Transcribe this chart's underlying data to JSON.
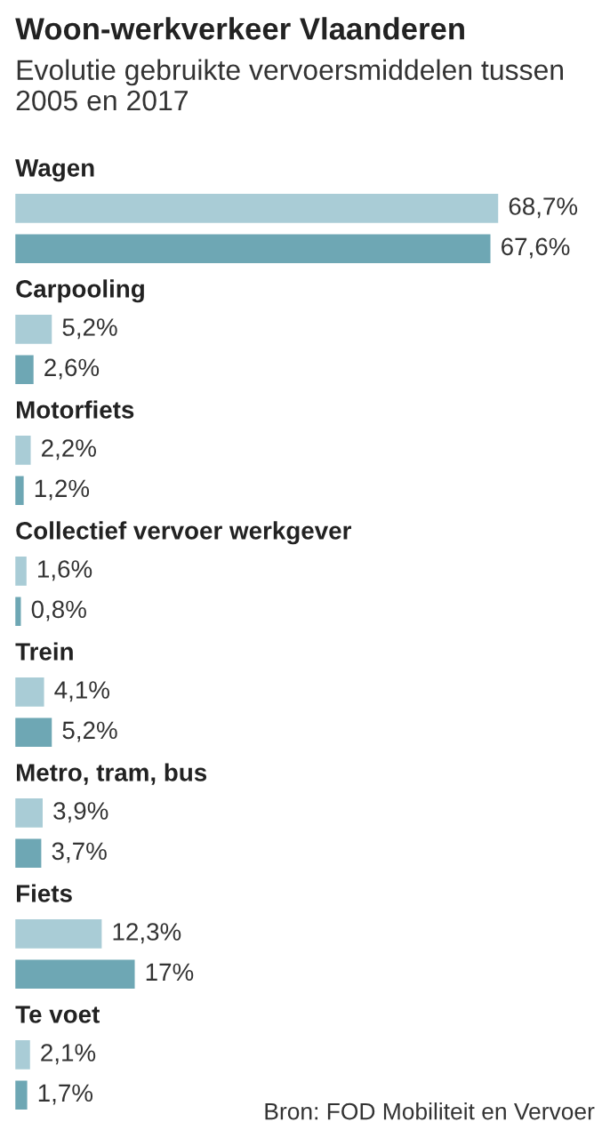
{
  "chart_data": {
    "type": "bar",
    "orientation": "horizontal",
    "title": "Woon-werkverkeer Vlaanderen",
    "subtitle": "Evolutie gebruikte vervoersmiddelen tussen 2005 en 2017",
    "categories": [
      "Wagen",
      "Carpooling",
      "Motorfiets",
      "Collectief vervoer werkgever",
      "Trein",
      "Metro, tram, bus",
      "Fiets",
      "Te voet"
    ],
    "series": [
      {
        "color": "#a9ccd6",
        "values": [
          68.7,
          5.2,
          2.2,
          1.6,
          4.1,
          3.9,
          12.3,
          2.1
        ],
        "value_labels": [
          "68,7%",
          "5,2%",
          "2,2%",
          "1,6%",
          "4,1%",
          "3,9%",
          "12,3%",
          "2,1%"
        ]
      },
      {
        "color": "#6ea7b4",
        "values": [
          67.6,
          2.6,
          1.2,
          0.8,
          5.2,
          3.7,
          17,
          1.7
        ],
        "value_labels": [
          "67,6%",
          "2,6%",
          "1,2%",
          "0,8%",
          "5,2%",
          "3,7%",
          "17%",
          "1,7%"
        ]
      }
    ],
    "annotations": [
      "Bron: FOD Mobiliteit en Vervoer"
    ]
  }
}
